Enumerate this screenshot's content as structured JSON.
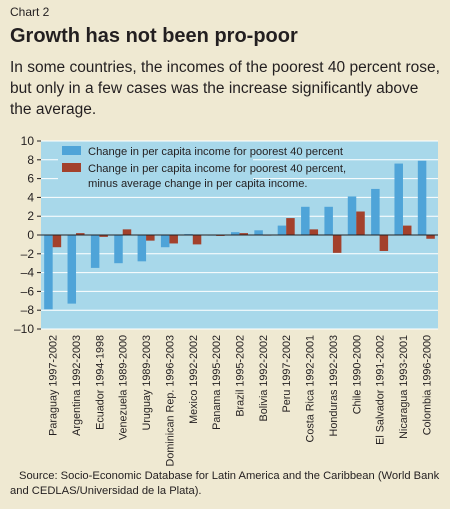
{
  "header": {
    "chart_label": "Chart 2",
    "title": "Growth has not been pro-poor",
    "subtitle": "In some countries, the incomes of the poorest 40 percent rose, but only in a few cases was the increase significantly above the average."
  },
  "source": "Source: Socio-Economic Database for Latin America and the Caribbean (World Bank and CEDLAS/Universidad de la Plata).",
  "colors": {
    "series1": "#4fa4d8",
    "series2": "#a3412c",
    "plot_bg": "#a8d8ea",
    "grid": "#ffffff",
    "page_bg": "#efe9d2"
  },
  "chart_data": {
    "type": "bar",
    "title": "Growth has not been pro-poor",
    "ylim": [
      -10,
      10
    ],
    "yticks": [
      -10,
      -8,
      -6,
      -4,
      -2,
      0,
      2,
      4,
      6,
      8,
      10
    ],
    "ytick_labels": [
      "–10",
      "–8",
      "–6",
      "–4",
      "–2",
      "0",
      "2",
      "4",
      "6",
      "8",
      "10"
    ],
    "grid": true,
    "legend_position": "top-right",
    "categories": [
      "Paraguay 1997-2002",
      "Argentina 1992-2003",
      "Ecuador 1994-1998",
      "Venezuela 1989-2000",
      "Uruguay 1989-2003",
      "Dominican Rep. 1996-2003",
      "Mexico 1992-2002",
      "Panama 1995-2002",
      "Brazil 1995-2002",
      "Bolivia 1992-2002",
      "Peru 1997-2002",
      "Costa Rica 1992-2001",
      "Honduras 1992-2003",
      "Chile 1990-2000",
      "El Salvador 1991-2002",
      "Nicaragua 1993-2001",
      "Colombia 1996-2000"
    ],
    "series": [
      {
        "name": "Change in per capita income for poorest 40 percent",
        "values": [
          -7.9,
          -7.3,
          -3.5,
          -3.0,
          -2.8,
          -1.3,
          0.1,
          0.0,
          0.3,
          0.5,
          1.0,
          3.0,
          3.0,
          4.1,
          4.9,
          7.6,
          7.9
        ]
      },
      {
        "name": "Change in per capita income for poorest 40 percent, minus average change in per capita income.",
        "values": [
          -1.3,
          0.2,
          -0.2,
          0.6,
          -0.6,
          -0.9,
          -1.0,
          -0.1,
          0.2,
          0.0,
          1.8,
          0.6,
          -1.9,
          2.5,
          -1.7,
          1.0,
          -0.4
        ]
      }
    ]
  }
}
